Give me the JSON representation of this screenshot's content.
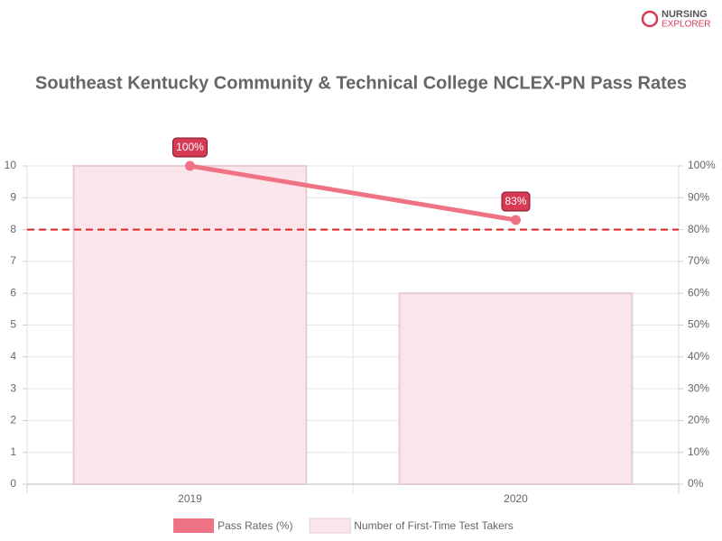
{
  "logo": {
    "line1": "NURSING",
    "line2": "EXPLORER"
  },
  "chart_data": {
    "type": "bar_line",
    "title": "Southeast Kentucky Community & Technical College NCLEX-PN Pass Rates",
    "categories": [
      "2019",
      "2020"
    ],
    "series": [
      {
        "name": "Pass Rates (%)",
        "type": "line",
        "axis": "y2",
        "color": "#ef7385",
        "values": [
          100,
          83
        ],
        "value_labels": [
          "100%",
          "83%"
        ]
      },
      {
        "name": "Number of First-Time Test Takers",
        "type": "bar",
        "axis": "y",
        "color": "#f9e5ea",
        "values": [
          10,
          6
        ]
      }
    ],
    "ylim": [
      0,
      10
    ],
    "yticks": [
      0,
      1,
      2,
      3,
      4,
      5,
      6,
      7,
      8,
      9,
      10
    ],
    "y2lim": [
      0,
      100
    ],
    "y2ticks": [
      {
        "value": 0,
        "label": "0%"
      },
      {
        "value": 10,
        "label": "10%"
      },
      {
        "value": 20,
        "label": "20%"
      },
      {
        "value": 30,
        "label": "30%"
      },
      {
        "value": 40,
        "label": "40%"
      },
      {
        "value": 50,
        "label": "50%"
      },
      {
        "value": 60,
        "label": "60%"
      },
      {
        "value": 70,
        "label": "70%"
      },
      {
        "value": 80,
        "label": "80%"
      },
      {
        "value": 90,
        "label": "90%"
      },
      {
        "value": 100,
        "label": "100%"
      }
    ],
    "reference_line": {
      "value": 80,
      "axis": "y2",
      "color": "#e02424"
    },
    "grid": true,
    "legend": "bottom"
  }
}
